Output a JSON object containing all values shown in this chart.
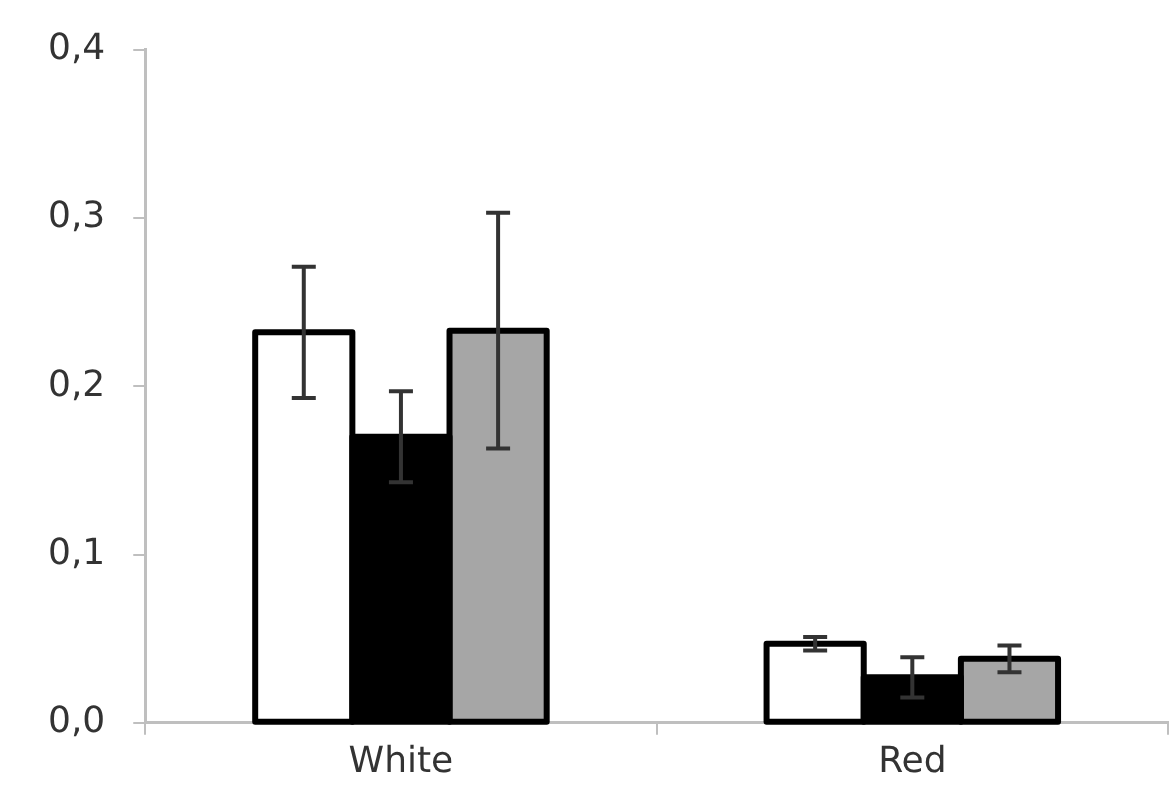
{
  "chart_data": {
    "type": "bar",
    "categories": [
      "White",
      "Red"
    ],
    "series": [
      {
        "color": "#ffffff",
        "values": [
          0.232,
          0.047
        ],
        "errors": [
          0.039,
          0.004
        ]
      },
      {
        "color": "#000000",
        "values": [
          0.17,
          0.027
        ],
        "errors": [
          0.027,
          0.012
        ]
      },
      {
        "color": "#a6a6a6",
        "values": [
          0.233,
          0.038
        ],
        "errors": [
          0.07,
          0.008
        ]
      }
    ],
    "ylim": [
      0,
      0.4
    ],
    "yticks": [
      {
        "value": 0,
        "label": "0,0"
      },
      {
        "value": 0.1,
        "label": "0,1"
      },
      {
        "value": 0.2,
        "label": "0,2"
      },
      {
        "value": 0.3,
        "label": "0,3"
      },
      {
        "value": 0.4,
        "label": "0,4"
      }
    ],
    "grid": false,
    "legend": false
  }
}
